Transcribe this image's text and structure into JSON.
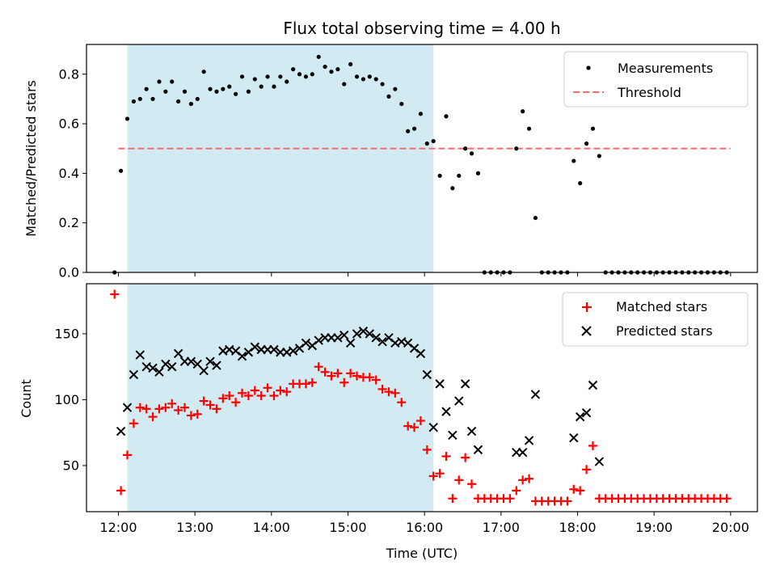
{
  "title": "Flux total observing time = 4.00 h",
  "colors": {
    "shade": "#add8e6",
    "threshold": "#ff6b6b",
    "measure": "#000000",
    "matched": "#ff0000",
    "predicted": "#000000"
  },
  "chart_data": [
    {
      "type": "scatter",
      "xlabel": "",
      "ylabel": "Matched/Predicted stars",
      "xlim": [
        "11:35",
        "20:21"
      ],
      "ylim": [
        0,
        0.92
      ],
      "yticks": [
        "0.0",
        "0.2",
        "0.4",
        "0.6",
        "0.8"
      ],
      "shaded_span": [
        "12:07",
        "16:07"
      ],
      "threshold": {
        "y": 0.5,
        "x": [
          "12:00",
          "20:00"
        ]
      },
      "legend": {
        "position": "top-right",
        "entries": [
          "Measurements",
          "Threshold"
        ]
      },
      "series": [
        {
          "name": "Measurements",
          "points": [
            [
              "11:57",
              0.0
            ],
            [
              "12:02",
              0.41
            ],
            [
              "12:07",
              0.62
            ],
            [
              "12:12",
              0.69
            ],
            [
              "12:17",
              0.7
            ],
            [
              "12:22",
              0.74
            ],
            [
              "12:27",
              0.7
            ],
            [
              "12:32",
              0.77
            ],
            [
              "12:37",
              0.73
            ],
            [
              "12:42",
              0.77
            ],
            [
              "12:47",
              0.69
            ],
            [
              "12:52",
              0.73
            ],
            [
              "12:57",
              0.68
            ],
            [
              "13:02",
              0.7
            ],
            [
              "13:07",
              0.81
            ],
            [
              "13:12",
              0.74
            ],
            [
              "13:17",
              0.73
            ],
            [
              "13:22",
              0.74
            ],
            [
              "13:27",
              0.75
            ],
            [
              "13:32",
              0.72
            ],
            [
              "13:37",
              0.79
            ],
            [
              "13:42",
              0.73
            ],
            [
              "13:47",
              0.78
            ],
            [
              "13:52",
              0.75
            ],
            [
              "13:57",
              0.79
            ],
            [
              "14:02",
              0.75
            ],
            [
              "14:07",
              0.79
            ],
            [
              "14:12",
              0.77
            ],
            [
              "14:17",
              0.82
            ],
            [
              "14:22",
              0.8
            ],
            [
              "14:27",
              0.79
            ],
            [
              "14:32",
              0.8
            ],
            [
              "14:37",
              0.87
            ],
            [
              "14:42",
              0.83
            ],
            [
              "14:47",
              0.81
            ],
            [
              "14:52",
              0.82
            ],
            [
              "14:57",
              0.76
            ],
            [
              "15:02",
              0.84
            ],
            [
              "15:07",
              0.79
            ],
            [
              "15:12",
              0.78
            ],
            [
              "15:17",
              0.79
            ],
            [
              "15:22",
              0.78
            ],
            [
              "15:27",
              0.76
            ],
            [
              "15:32",
              0.71
            ],
            [
              "15:37",
              0.74
            ],
            [
              "15:42",
              0.68
            ],
            [
              "15:47",
              0.57
            ],
            [
              "15:52",
              0.58
            ],
            [
              "15:57",
              0.64
            ],
            [
              "16:02",
              0.52
            ],
            [
              "16:07",
              0.53
            ],
            [
              "16:12",
              0.39
            ],
            [
              "16:17",
              0.63
            ],
            [
              "16:22",
              0.34
            ],
            [
              "16:27",
              0.39
            ],
            [
              "16:32",
              0.5
            ],
            [
              "16:37",
              0.48
            ],
            [
              "16:42",
              0.4
            ],
            [
              "16:47",
              0.0
            ],
            [
              "16:52",
              0.0
            ],
            [
              "16:57",
              0.0
            ],
            [
              "17:02",
              0.0
            ],
            [
              "17:07",
              0.0
            ],
            [
              "17:12",
              0.5
            ],
            [
              "17:17",
              0.65
            ],
            [
              "17:22",
              0.58
            ],
            [
              "17:27",
              0.22
            ],
            [
              "17:32",
              0.0
            ],
            [
              "17:37",
              0.0
            ],
            [
              "17:42",
              0.0
            ],
            [
              "17:47",
              0.0
            ],
            [
              "17:52",
              0.0
            ],
            [
              "17:57",
              0.45
            ],
            [
              "18:02",
              0.36
            ],
            [
              "18:07",
              0.52
            ],
            [
              "18:12",
              0.58
            ],
            [
              "18:17",
              0.47
            ],
            [
              "18:22",
              0.0
            ],
            [
              "18:27",
              0.0
            ],
            [
              "18:32",
              0.0
            ],
            [
              "18:37",
              0.0
            ],
            [
              "18:42",
              0.0
            ],
            [
              "18:47",
              0.0
            ],
            [
              "18:52",
              0.0
            ],
            [
              "18:57",
              0.0
            ],
            [
              "19:02",
              0.0
            ],
            [
              "19:07",
              0.0
            ],
            [
              "19:12",
              0.0
            ],
            [
              "19:17",
              0.0
            ],
            [
              "19:22",
              0.0
            ],
            [
              "19:27",
              0.0
            ],
            [
              "19:32",
              0.0
            ],
            [
              "19:37",
              0.0
            ],
            [
              "19:42",
              0.0
            ],
            [
              "19:47",
              0.0
            ],
            [
              "19:52",
              0.0
            ],
            [
              "19:57",
              0.0
            ]
          ]
        }
      ]
    },
    {
      "type": "scatter",
      "xlabel": "Time (UTC)",
      "ylabel": "Count",
      "xlim": [
        "11:35",
        "20:21"
      ],
      "ylim": [
        15,
        188
      ],
      "xticks": [
        "12:00",
        "13:00",
        "14:00",
        "15:00",
        "16:00",
        "17:00",
        "18:00",
        "19:00",
        "20:00"
      ],
      "yticks": [
        "50",
        "100",
        "150"
      ],
      "shaded_span": [
        "12:07",
        "16:07"
      ],
      "legend": {
        "position": "top-right",
        "entries": [
          "Matched stars",
          "Predicted stars"
        ]
      },
      "series": [
        {
          "name": "Matched stars",
          "points": [
            [
              "11:57",
              180
            ],
            [
              "12:02",
              31
            ],
            [
              "12:07",
              58
            ],
            [
              "12:12",
              82
            ],
            [
              "12:17",
              94
            ],
            [
              "12:22",
              93
            ],
            [
              "12:27",
              87
            ],
            [
              "12:32",
              93
            ],
            [
              "12:37",
              94
            ],
            [
              "12:42",
              97
            ],
            [
              "12:47",
              92
            ],
            [
              "12:52",
              94
            ],
            [
              "12:57",
              88
            ],
            [
              "13:02",
              89
            ],
            [
              "13:07",
              99
            ],
            [
              "13:12",
              96
            ],
            [
              "13:17",
              93
            ],
            [
              "13:22",
              101
            ],
            [
              "13:27",
              103
            ],
            [
              "13:32",
              98
            ],
            [
              "13:37",
              105
            ],
            [
              "13:42",
              103
            ],
            [
              "13:47",
              107
            ],
            [
              "13:52",
              103
            ],
            [
              "13:57",
              109
            ],
            [
              "14:02",
              103
            ],
            [
              "14:07",
              107
            ],
            [
              "14:12",
              106
            ],
            [
              "14:17",
              112
            ],
            [
              "14:22",
              112
            ],
            [
              "14:27",
              112
            ],
            [
              "14:32",
              113
            ],
            [
              "14:37",
              125
            ],
            [
              "14:42",
              121
            ],
            [
              "14:47",
              118
            ],
            [
              "14:52",
              120
            ],
            [
              "14:57",
              113
            ],
            [
              "15:02",
              120
            ],
            [
              "15:07",
              118
            ],
            [
              "15:12",
              117
            ],
            [
              "15:17",
              117
            ],
            [
              "15:22",
              115
            ],
            [
              "15:27",
              108
            ],
            [
              "15:32",
              106
            ],
            [
              "15:37",
              105
            ],
            [
              "15:42",
              98
            ],
            [
              "15:47",
              80
            ],
            [
              "15:52",
              79
            ],
            [
              "15:57",
              84
            ],
            [
              "16:02",
              62
            ],
            [
              "16:07",
              42
            ],
            [
              "16:12",
              44
            ],
            [
              "16:17",
              57
            ],
            [
              "16:22",
              25
            ],
            [
              "16:27",
              39
            ],
            [
              "16:32",
              56
            ],
            [
              "16:37",
              36
            ],
            [
              "16:42",
              25
            ],
            [
              "16:47",
              25
            ],
            [
              "16:52",
              25
            ],
            [
              "16:57",
              25
            ],
            [
              "17:02",
              25
            ],
            [
              "17:07",
              25
            ],
            [
              "17:12",
              31
            ],
            [
              "17:17",
              39
            ],
            [
              "17:22",
              40
            ],
            [
              "17:27",
              23
            ],
            [
              "17:32",
              23
            ],
            [
              "17:37",
              23
            ],
            [
              "17:42",
              23
            ],
            [
              "17:47",
              23
            ],
            [
              "17:52",
              23
            ],
            [
              "17:57",
              32
            ],
            [
              "18:02",
              31
            ],
            [
              "18:07",
              47
            ],
            [
              "18:12",
              65
            ],
            [
              "18:17",
              25
            ],
            [
              "18:22",
              25
            ],
            [
              "18:27",
              25
            ],
            [
              "18:32",
              25
            ],
            [
              "18:37",
              25
            ],
            [
              "18:42",
              25
            ],
            [
              "18:47",
              25
            ],
            [
              "18:52",
              25
            ],
            [
              "18:57",
              25
            ],
            [
              "19:02",
              25
            ],
            [
              "19:07",
              25
            ],
            [
              "19:12",
              25
            ],
            [
              "19:17",
              25
            ],
            [
              "19:22",
              25
            ],
            [
              "19:27",
              25
            ],
            [
              "19:32",
              25
            ],
            [
              "19:37",
              25
            ],
            [
              "19:42",
              25
            ],
            [
              "19:47",
              25
            ],
            [
              "19:52",
              25
            ],
            [
              "19:57",
              25
            ]
          ]
        },
        {
          "name": "Predicted stars",
          "points": [
            [
              "12:02",
              76
            ],
            [
              "12:07",
              94
            ],
            [
              "12:12",
              119
            ],
            [
              "12:17",
              134
            ],
            [
              "12:22",
              125
            ],
            [
              "12:27",
              124
            ],
            [
              "12:32",
              121
            ],
            [
              "12:37",
              127
            ],
            [
              "12:42",
              125
            ],
            [
              "12:47",
              135
            ],
            [
              "12:52",
              129
            ],
            [
              "12:57",
              129
            ],
            [
              "13:02",
              127
            ],
            [
              "13:07",
              122
            ],
            [
              "13:12",
              129
            ],
            [
              "13:17",
              126
            ],
            [
              "13:22",
              137
            ],
            [
              "13:27",
              138
            ],
            [
              "13:32",
              137
            ],
            [
              "13:37",
              133
            ],
            [
              "13:42",
              136
            ],
            [
              "13:47",
              140
            ],
            [
              "13:52",
              138
            ],
            [
              "13:57",
              138
            ],
            [
              "14:02",
              138
            ],
            [
              "14:07",
              136
            ],
            [
              "14:12",
              136
            ],
            [
              "14:17",
              137
            ],
            [
              "14:22",
              139
            ],
            [
              "14:27",
              143
            ],
            [
              "14:32",
              141
            ],
            [
              "14:37",
              145
            ],
            [
              "14:42",
              147
            ],
            [
              "14:47",
              147
            ],
            [
              "14:52",
              147
            ],
            [
              "14:57",
              149
            ],
            [
              "15:02",
              143
            ],
            [
              "15:07",
              150
            ],
            [
              "15:12",
              152
            ],
            [
              "15:17",
              150
            ],
            [
              "15:22",
              147
            ],
            [
              "15:27",
              144
            ],
            [
              "15:32",
              147
            ],
            [
              "15:37",
              143
            ],
            [
              "15:42",
              144
            ],
            [
              "15:47",
              143
            ],
            [
              "15:52",
              139
            ],
            [
              "15:57",
              135
            ],
            [
              "16:02",
              119
            ],
            [
              "16:07",
              79
            ],
            [
              "16:12",
              112
            ],
            [
              "16:17",
              91
            ],
            [
              "16:22",
              73
            ],
            [
              "16:27",
              99
            ],
            [
              "16:32",
              112
            ],
            [
              "16:37",
              76
            ],
            [
              "16:42",
              62
            ],
            [
              "17:12",
              60
            ],
            [
              "17:17",
              60
            ],
            [
              "17:22",
              69
            ],
            [
              "17:27",
              104
            ],
            [
              "17:57",
              71
            ],
            [
              "18:02",
              87
            ],
            [
              "18:07",
              90
            ],
            [
              "18:12",
              111
            ],
            [
              "18:17",
              53
            ]
          ]
        }
      ]
    }
  ]
}
